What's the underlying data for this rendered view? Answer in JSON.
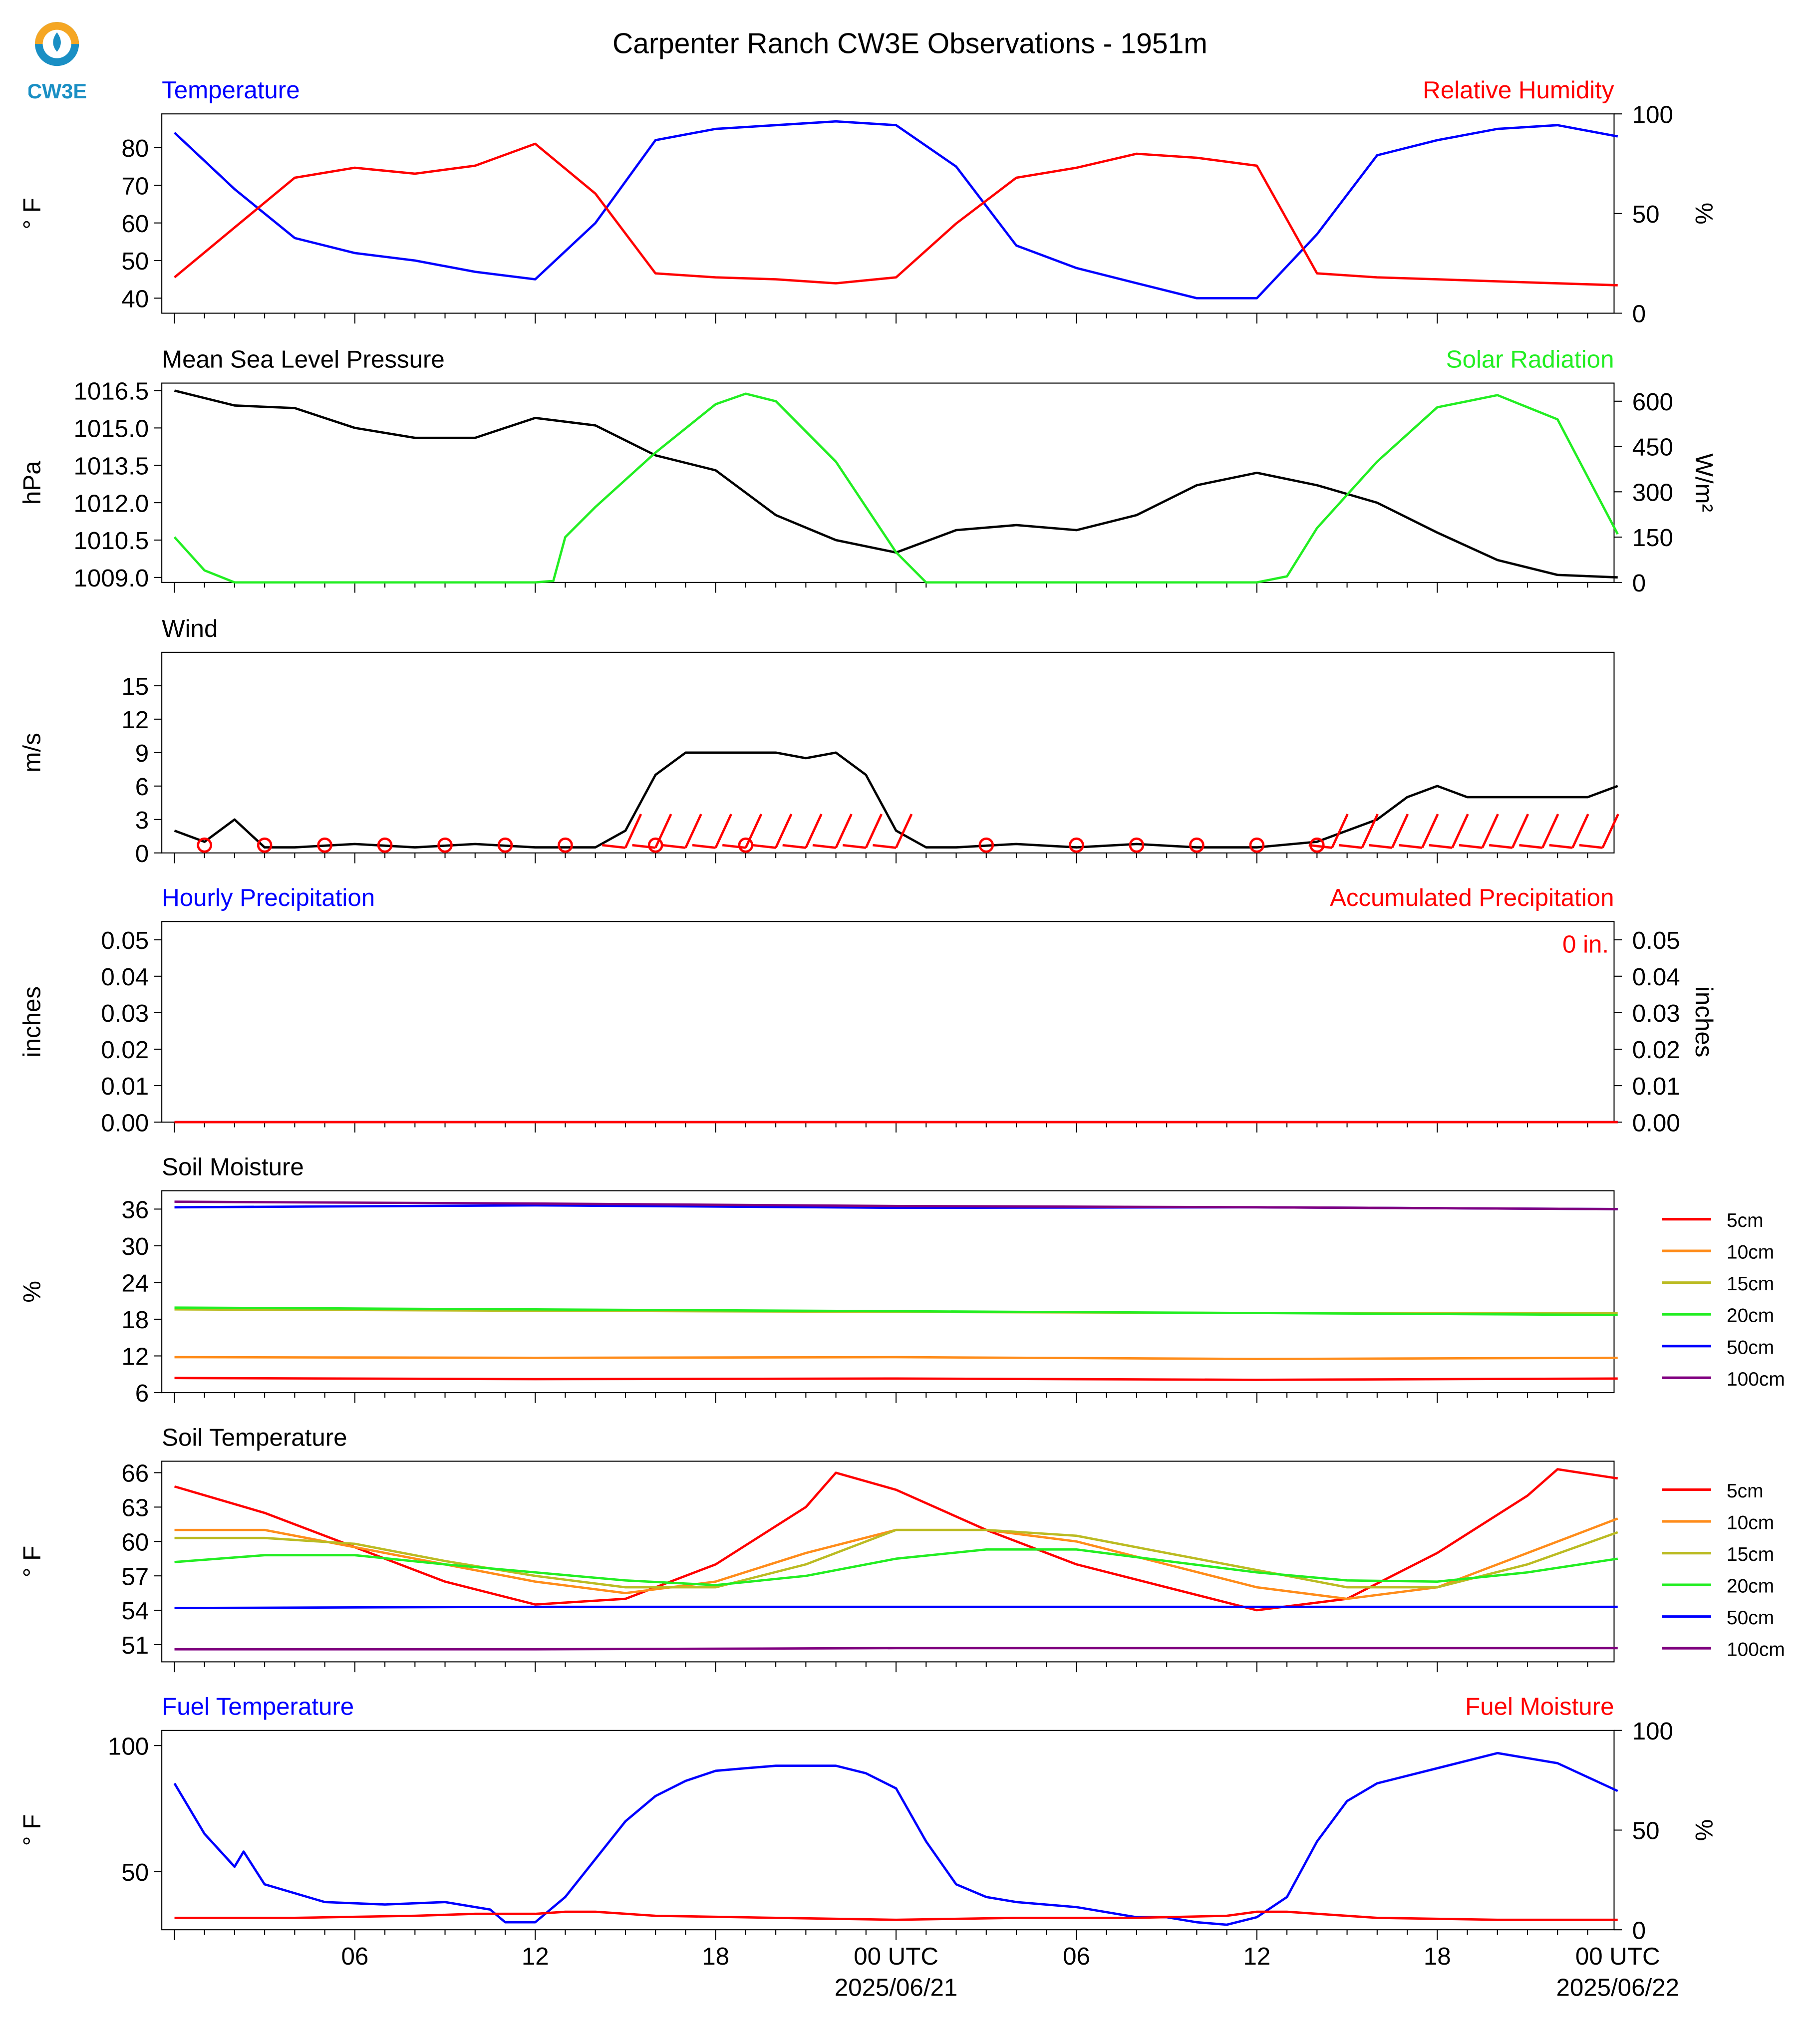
{
  "title": "Carpenter Ranch CW3E Observations - 1951m",
  "logo_text": "CW3E",
  "colors": {
    "blue": "#0000ff",
    "red": "#ff0000",
    "green": "#22ee22",
    "black": "#000000",
    "orange": "#ff8c1a",
    "olive": "#bbbb22",
    "purple": "#800080"
  },
  "chart_data": [
    {
      "type": "line",
      "left_title": "Temperature",
      "right_title": "Relative Humidity",
      "ylabel": "° F",
      "y2label": "%",
      "ylim": [
        36,
        89
      ],
      "y2lim": [
        0,
        100
      ],
      "yticks": [
        "40",
        "50",
        "60",
        "70",
        "80"
      ],
      "y2ticks": [
        "0",
        "50",
        "100"
      ],
      "series": [
        {
          "name": "Temperature",
          "color": "#0000ff",
          "axis": "left",
          "x": [
            0,
            2,
            4,
            6,
            8,
            10,
            12,
            14,
            16,
            18,
            20,
            22,
            24,
            26,
            28,
            30,
            32,
            34,
            36,
            38,
            40,
            42,
            44,
            46,
            48
          ],
          "y": [
            84,
            69,
            56,
            52,
            50,
            47,
            45,
            60,
            82,
            85,
            86,
            87,
            86,
            75,
            54,
            48,
            44,
            40,
            40,
            57,
            78,
            82,
            85,
            86,
            83
          ]
        },
        {
          "name": "Relative Humidity",
          "color": "#ff0000",
          "axis": "right",
          "x": [
            0,
            2,
            4,
            6,
            8,
            10,
            12,
            14,
            16,
            18,
            20,
            22,
            24,
            26,
            28,
            30,
            32,
            34,
            36,
            38,
            40,
            42,
            44,
            46,
            48
          ],
          "y": [
            18,
            43,
            68,
            73,
            70,
            74,
            85,
            60,
            20,
            18,
            17,
            15,
            18,
            45,
            68,
            73,
            80,
            78,
            74,
            20,
            18,
            17,
            16,
            15,
            14
          ]
        }
      ]
    },
    {
      "type": "line",
      "left_title": "Mean Sea Level Pressure",
      "right_title": "Solar Radiation",
      "ylabel": "hPa",
      "y2label": "W/m²",
      "ylim": [
        1008.8,
        1016.8
      ],
      "y2lim": [
        0,
        660
      ],
      "yticks": [
        "1009.0",
        "1010.5",
        "1012.0",
        "1013.5",
        "1015.0",
        "1016.5"
      ],
      "y2ticks": [
        "0",
        "150",
        "300",
        "450",
        "600"
      ],
      "series": [
        {
          "name": "Mean Sea Level Pressure",
          "color": "#000000",
          "axis": "left",
          "x": [
            0,
            2,
            4,
            6,
            8,
            10,
            12,
            14,
            16,
            18,
            20,
            22,
            24,
            26,
            28,
            30,
            32,
            34,
            36,
            38,
            40,
            42,
            44,
            46,
            48
          ],
          "y": [
            1016.5,
            1015.9,
            1015.8,
            1015.0,
            1014.6,
            1014.6,
            1015.4,
            1015.1,
            1013.9,
            1013.3,
            1011.5,
            1010.5,
            1010.0,
            1010.9,
            1011.1,
            1010.9,
            1011.5,
            1012.7,
            1013.2,
            1012.7,
            1012.0,
            1010.8,
            1009.7,
            1009.1,
            1009.0
          ]
        },
        {
          "name": "Solar Radiation",
          "color": "#22ee22",
          "axis": "right",
          "x": [
            0,
            1,
            2,
            4,
            6,
            8,
            10,
            12,
            12.6,
            13,
            14,
            16,
            18,
            19,
            20,
            22,
            24,
            25,
            28,
            32,
            36,
            37,
            38,
            40,
            42,
            44,
            46,
            48
          ],
          "y": [
            150,
            40,
            0,
            0,
            0,
            0,
            0,
            0,
            5,
            150,
            250,
            430,
            590,
            625,
            600,
            400,
            100,
            0,
            0,
            0,
            0,
            20,
            180,
            400,
            580,
            620,
            540,
            160
          ]
        }
      ]
    },
    {
      "type": "line",
      "left_title": "Wind",
      "ylabel": "m/s",
      "ylim": [
        0,
        18
      ],
      "yticks": [
        "0",
        "3",
        "6",
        "9",
        "12",
        "15"
      ],
      "series": [
        {
          "name": "Wind",
          "color": "#000000",
          "axis": "left",
          "x": [
            0,
            1,
            2,
            3,
            4,
            6,
            8,
            10,
            12,
            14,
            15,
            16,
            17,
            18,
            19,
            20,
            21,
            22,
            23,
            24,
            25,
            26,
            28,
            30,
            32,
            34,
            36,
            38,
            40,
            41,
            42,
            43,
            44,
            45,
            46,
            47,
            48
          ],
          "y": [
            2,
            1,
            3,
            0.5,
            0.5,
            0.8,
            0.5,
            0.8,
            0.5,
            0.5,
            2,
            7,
            9,
            9,
            9,
            9,
            8.5,
            9,
            7,
            2,
            0.5,
            0.5,
            0.8,
            0.5,
            0.8,
            0.5,
            0.5,
            1,
            3,
            5,
            6,
            5,
            5,
            5,
            5,
            5,
            6
          ]
        }
      ]
    },
    {
      "type": "bar",
      "left_title": "Hourly Precipitation",
      "right_title": "Accumulated Precipitation",
      "ylabel": "inches",
      "y2label": "inches",
      "ylim": [
        0,
        0.055
      ],
      "y2lim": [
        0,
        0.055
      ],
      "yticks": [
        "0.00",
        "0.01",
        "0.02",
        "0.03",
        "0.04",
        "0.05"
      ],
      "y2ticks": [
        "0.00",
        "0.01",
        "0.02",
        "0.03",
        "0.04",
        "0.05"
      ],
      "annotation": "0 in.",
      "series": [
        {
          "name": "Hourly Precipitation",
          "color": "#0000ff",
          "axis": "left",
          "x": [
            0,
            48
          ],
          "y": [
            0,
            0
          ]
        },
        {
          "name": "Accumulated Precipitation",
          "color": "#ff0000",
          "axis": "right",
          "x": [
            0,
            48
          ],
          "y": [
            0,
            0
          ]
        }
      ]
    },
    {
      "type": "line",
      "left_title": "Soil Moisture",
      "ylabel": "%",
      "ylim": [
        6,
        39
      ],
      "yticks": [
        "6",
        "12",
        "18",
        "24",
        "30",
        "36"
      ],
      "legend": [
        "5cm",
        "10cm",
        "15cm",
        "20cm",
        "50cm",
        "100cm"
      ],
      "series": [
        {
          "name": "5cm",
          "color": "#ff0000",
          "axis": "left",
          "x": [
            0,
            12,
            24,
            36,
            48
          ],
          "y": [
            8.4,
            8.2,
            8.3,
            8.1,
            8.3
          ]
        },
        {
          "name": "10cm",
          "color": "#ff8c1a",
          "axis": "left",
          "x": [
            0,
            12,
            24,
            36,
            48
          ],
          "y": [
            11.8,
            11.7,
            11.8,
            11.5,
            11.7
          ]
        },
        {
          "name": "15cm",
          "color": "#bbbb22",
          "axis": "left",
          "x": [
            0,
            12,
            24,
            36,
            48
          ],
          "y": [
            19.6,
            19.4,
            19.2,
            19.0,
            19.0
          ]
        },
        {
          "name": "20cm",
          "color": "#22ee22",
          "axis": "left",
          "x": [
            0,
            12,
            24,
            36,
            48
          ],
          "y": [
            19.9,
            19.6,
            19.3,
            19.0,
            18.7
          ]
        },
        {
          "name": "50cm",
          "color": "#0000ff",
          "axis": "left",
          "x": [
            0,
            12,
            24,
            36,
            48
          ],
          "y": [
            36.3,
            36.6,
            36.2,
            36.3,
            36.0
          ]
        },
        {
          "name": "100cm",
          "color": "#800080",
          "axis": "left",
          "x": [
            0,
            12,
            24,
            36,
            48
          ],
          "y": [
            37.2,
            36.9,
            36.5,
            36.3,
            36.0
          ]
        }
      ]
    },
    {
      "type": "line",
      "left_title": "Soil Temperature",
      "ylabel": "° F",
      "ylim": [
        49.5,
        67
      ],
      "yticks": [
        "51",
        "54",
        "57",
        "60",
        "63",
        "66"
      ],
      "legend": [
        "5cm",
        "10cm",
        "15cm",
        "20cm",
        "50cm",
        "100cm"
      ],
      "series": [
        {
          "name": "5cm",
          "color": "#ff0000",
          "axis": "left",
          "x": [
            0,
            3,
            6,
            9,
            12,
            15,
            18,
            21,
            22,
            24,
            27,
            30,
            33,
            36,
            39,
            42,
            45,
            46,
            48
          ],
          "y": [
            64.8,
            62.5,
            59.5,
            56.5,
            54.5,
            55,
            58,
            63,
            66,
            64.5,
            61,
            58,
            56,
            54,
            55,
            59,
            64,
            66.3,
            65.5
          ]
        },
        {
          "name": "10cm",
          "color": "#ff8c1a",
          "axis": "left",
          "x": [
            0,
            3,
            6,
            9,
            12,
            15,
            18,
            21,
            24,
            27,
            30,
            33,
            36,
            39,
            42,
            45,
            48
          ],
          "y": [
            61,
            61,
            59.5,
            58,
            56.5,
            55.5,
            56.5,
            59,
            61,
            61,
            60,
            58,
            56,
            55,
            56,
            59,
            62
          ]
        },
        {
          "name": "15cm",
          "color": "#bbbb22",
          "axis": "left",
          "x": [
            0,
            3,
            6,
            9,
            12,
            15,
            18,
            21,
            24,
            27,
            30,
            33,
            36,
            39,
            42,
            45,
            48
          ],
          "y": [
            60.3,
            60.3,
            59.8,
            58.3,
            57,
            56,
            56,
            58,
            61,
            61,
            60.5,
            59,
            57.5,
            56,
            56,
            58,
            60.8
          ]
        },
        {
          "name": "20cm",
          "color": "#22ee22",
          "axis": "left",
          "x": [
            0,
            3,
            6,
            9,
            12,
            15,
            18,
            21,
            24,
            27,
            30,
            33,
            36,
            39,
            42,
            45,
            48
          ],
          "y": [
            58.2,
            58.8,
            58.8,
            58,
            57.3,
            56.6,
            56.2,
            57,
            58.5,
            59.3,
            59.3,
            58.3,
            57.3,
            56.6,
            56.5,
            57.3,
            58.5
          ]
        },
        {
          "name": "50cm",
          "color": "#0000ff",
          "axis": "left",
          "x": [
            0,
            12,
            24,
            36,
            48
          ],
          "y": [
            54.2,
            54.3,
            54.3,
            54.3,
            54.3
          ]
        },
        {
          "name": "100cm",
          "color": "#800080",
          "axis": "left",
          "x": [
            0,
            12,
            24,
            36,
            48
          ],
          "y": [
            50.6,
            50.6,
            50.7,
            50.7,
            50.7
          ]
        }
      ]
    },
    {
      "type": "line",
      "left_title": "Fuel Temperature",
      "right_title": "Fuel Moisture",
      "ylabel": "° F",
      "y2label": "%",
      "ylim": [
        27,
        106
      ],
      "y2lim": [
        0,
        100
      ],
      "yticks": [
        "50",
        "100"
      ],
      "y2ticks": [
        "0",
        "50",
        "100"
      ],
      "xticks": [
        "06",
        "12",
        "18",
        "00 UTC",
        "06",
        "12",
        "18",
        "00 UTC"
      ],
      "xdates": [
        "2025/06/21",
        "2025/06/22"
      ],
      "series": [
        {
          "name": "Fuel Temperature",
          "color": "#0000ff",
          "axis": "left",
          "x": [
            0,
            1,
            2,
            2.3,
            3,
            5,
            7,
            9,
            10.5,
            11,
            12,
            13,
            14,
            15,
            16,
            17,
            18,
            19,
            20,
            22,
            23,
            24,
            25,
            26,
            27,
            28,
            30,
            32,
            33,
            34,
            35,
            36,
            37,
            38,
            39,
            40,
            42,
            44,
            46,
            48
          ],
          "y": [
            85,
            65,
            52,
            58,
            45,
            38,
            37,
            38,
            35,
            30,
            30,
            40,
            55,
            70,
            80,
            86,
            90,
            91,
            92,
            92,
            89,
            83,
            62,
            45,
            40,
            38,
            36,
            32,
            32,
            30,
            29,
            32,
            40,
            62,
            78,
            85,
            91,
            97,
            93,
            82
          ]
        },
        {
          "name": "Fuel Moisture",
          "color": "#ff0000",
          "axis": "right",
          "x": [
            0,
            4,
            8,
            10,
            12,
            13,
            14,
            16,
            20,
            24,
            28,
            32,
            35,
            36,
            37,
            40,
            44,
            48
          ],
          "y": [
            6,
            6,
            7,
            8,
            8,
            9,
            9,
            7,
            6,
            5,
            6,
            6,
            7,
            9,
            9,
            6,
            5,
            5
          ]
        }
      ]
    }
  ]
}
